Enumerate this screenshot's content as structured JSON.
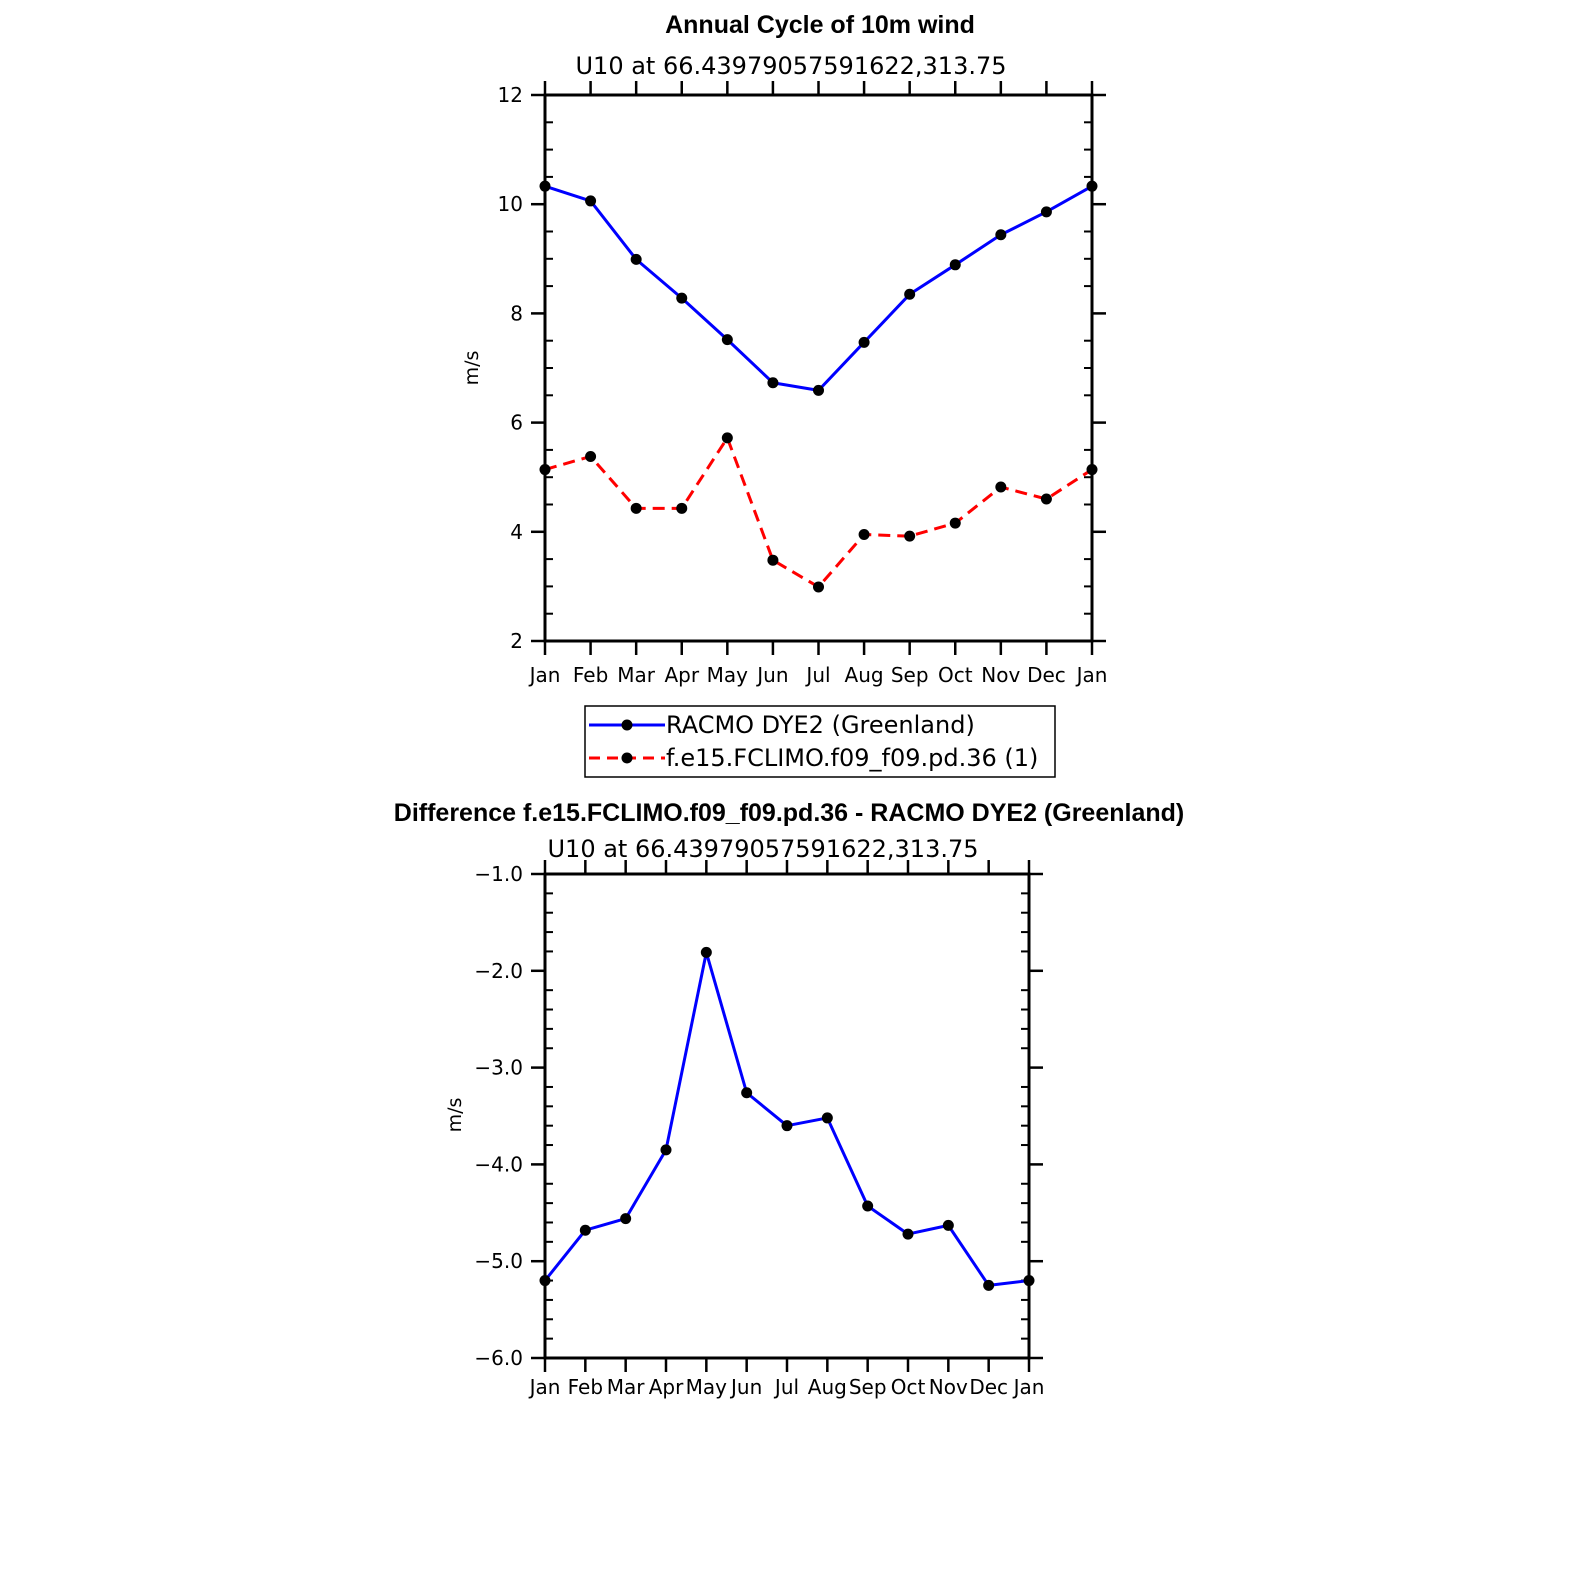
{
  "chart_data": [
    {
      "type": "line",
      "title": "Annual Cycle of 10m wind",
      "subtitle": "U10 at 66.43979057591622,313.75",
      "xlabel": "",
      "ylabel": "m/s",
      "ylim": [
        2,
        12
      ],
      "yticks": [
        2,
        4,
        6,
        8,
        10,
        12
      ],
      "categories": [
        "Jan",
        "Feb",
        "Mar",
        "Apr",
        "May",
        "Jun",
        "Jul",
        "Aug",
        "Sep",
        "Oct",
        "Nov",
        "Dec",
        "Jan"
      ],
      "series": [
        {
          "name": "RACMO DYE2 (Greenland)",
          "color": "#0000ff",
          "style": "solid",
          "values": [
            10.33,
            10.06,
            8.99,
            8.28,
            7.52,
            6.73,
            6.59,
            7.47,
            8.35,
            8.89,
            9.44,
            9.86,
            10.33
          ]
        },
        {
          "name": "f.e15.FCLIMO.f09_f09.pd.36 (1)",
          "color": "#ff0000",
          "style": "dashed",
          "values": [
            5.14,
            5.38,
            4.43,
            4.43,
            5.72,
            3.48,
            2.99,
            3.95,
            3.92,
            4.16,
            4.82,
            4.6,
            5.14
          ]
        }
      ],
      "legend": {
        "entries": [
          "RACMO DYE2 (Greenland)",
          "f.e15.FCLIMO.f09_f09.pd.36 (1)"
        ],
        "placement": "below"
      }
    },
    {
      "type": "line",
      "title": "Difference f.e15.FCLIMO.f09_f09.pd.36 - RACMO DYE2 (Greenland)",
      "subtitle": "U10 at 66.43979057591622,313.75",
      "xlabel": "",
      "ylabel": "m/s",
      "ylim": [
        -6.0,
        -1.0
      ],
      "yticks": [
        -6.0,
        -5.0,
        -4.0,
        -3.0,
        -2.0,
        -1.0
      ],
      "ytick_labels": [
        "−6.0",
        "−5.0",
        "−4.0",
        "−3.0",
        "−2.0",
        "−1.0"
      ],
      "categories": [
        "Jan",
        "Feb",
        "Mar",
        "Apr",
        "May",
        "Jun",
        "Jul",
        "Aug",
        "Sep",
        "Oct",
        "Nov",
        "Dec",
        "Jan"
      ],
      "series": [
        {
          "name": "Difference",
          "color": "#0000ff",
          "style": "solid",
          "values": [
            -5.2,
            -4.68,
            -4.56,
            -3.85,
            -1.81,
            -3.26,
            -3.6,
            -3.52,
            -4.43,
            -4.72,
            -4.63,
            -5.25,
            -5.2
          ]
        }
      ]
    }
  ]
}
